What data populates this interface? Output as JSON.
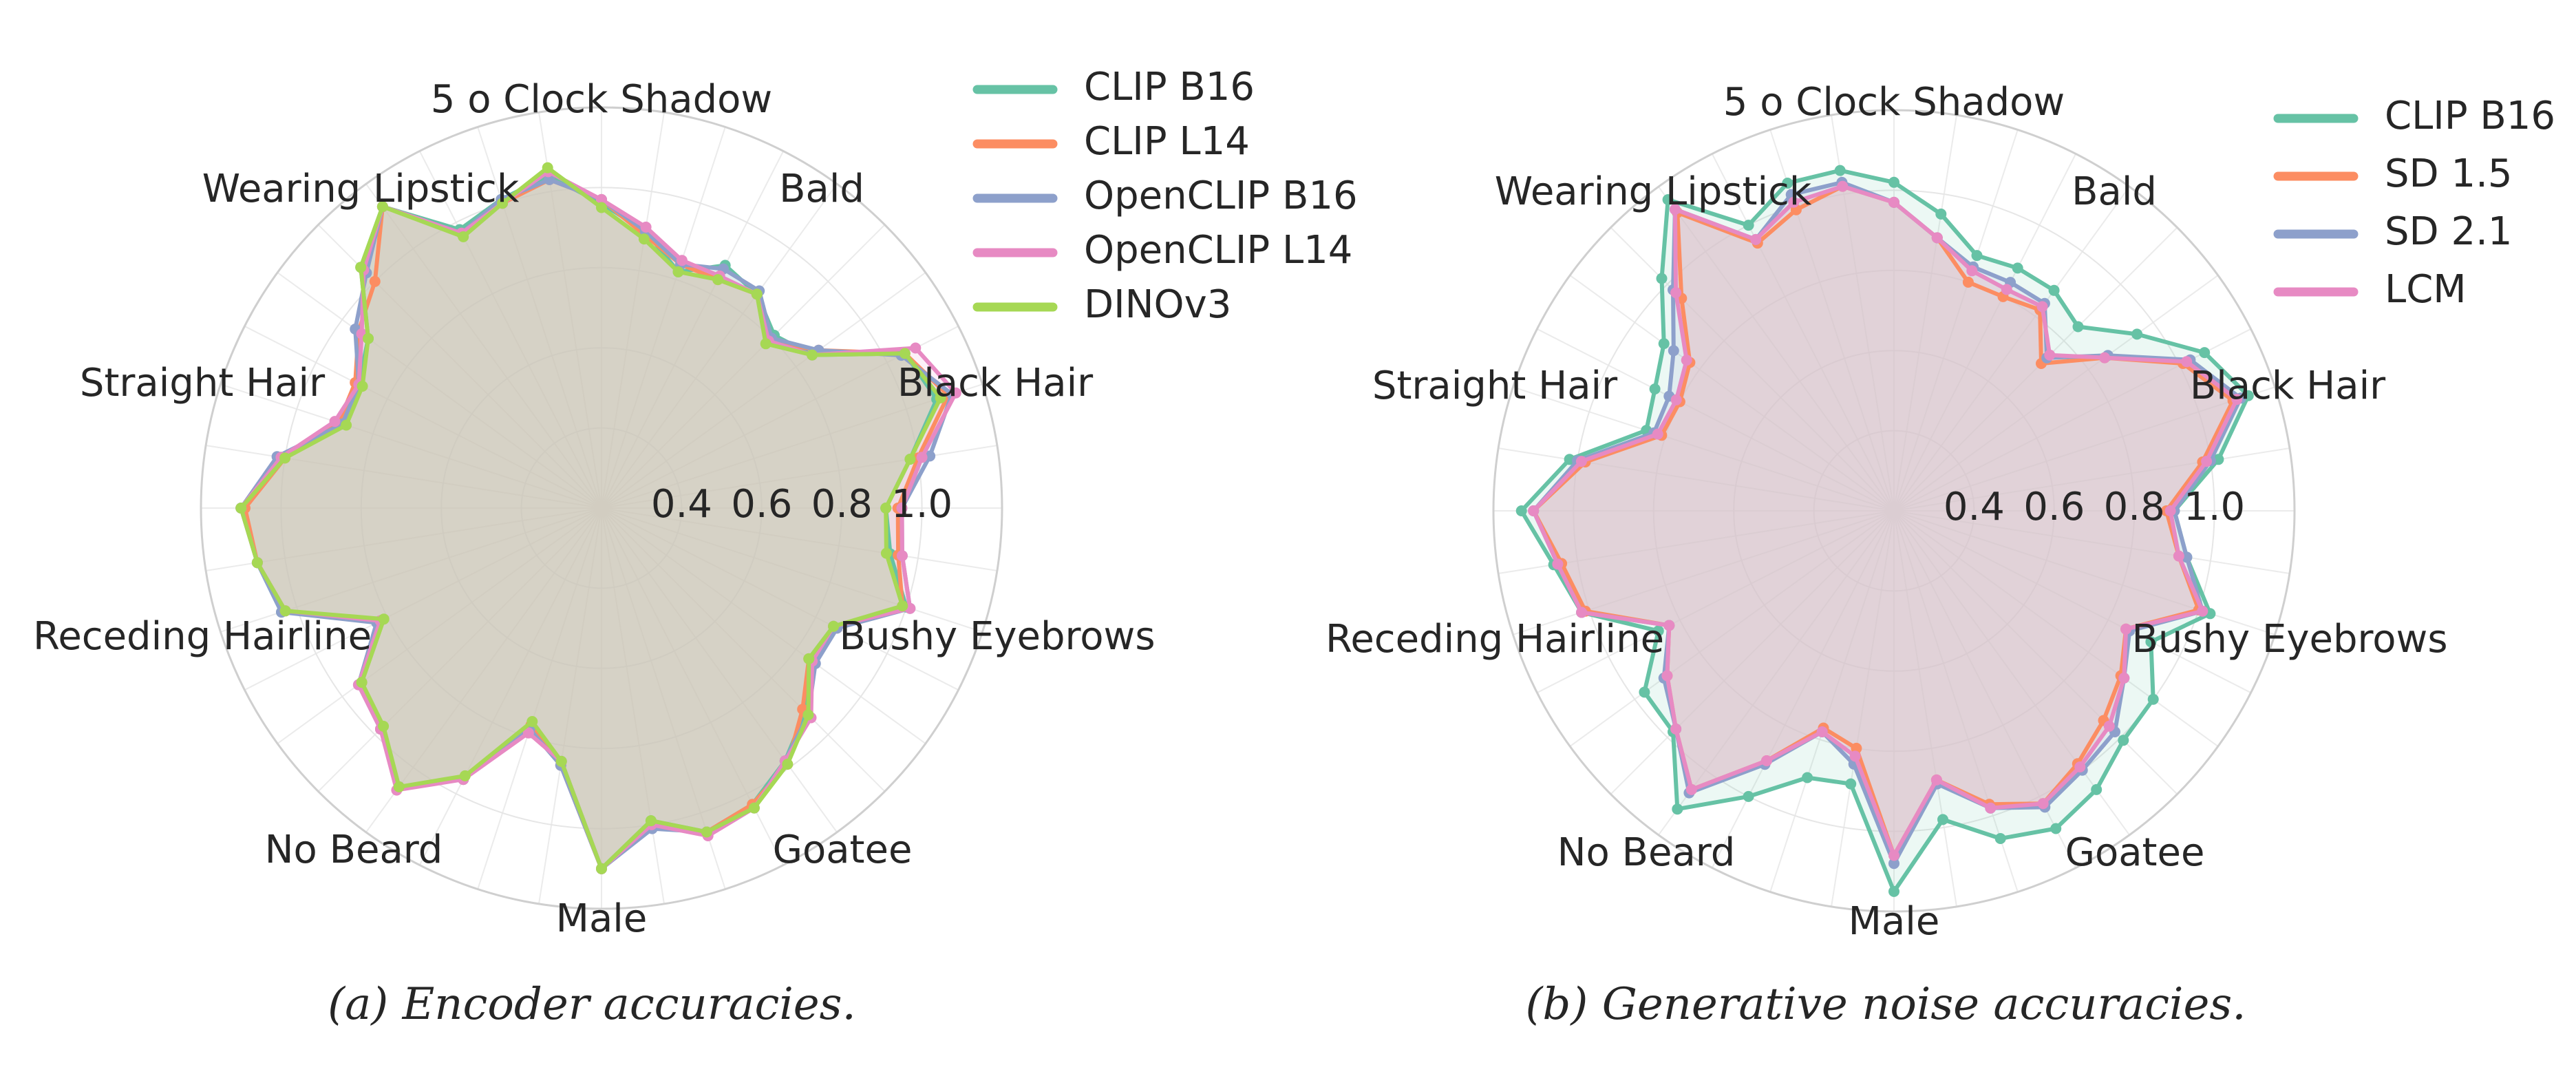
{
  "chart_data": [
    {
      "type": "radar",
      "caption": "(a) Encoder accuracies.",
      "axes": [
        "5 o Clock Shadow",
        "Bald",
        "Black Hair",
        "Bushy Eyebrows",
        "Goatee",
        "Male",
        "No Beard",
        "Receding Hairline",
        "Straight Hair",
        "Wearing Lipstick"
      ],
      "axis_labels": [
        {
          "text": "5 o Clock Shadow",
          "index": 0
        },
        {
          "text": "Bald",
          "index": 4
        },
        {
          "text": "Black Hair",
          "index": 8
        },
        {
          "text": "Bushy Eyebrows",
          "index": 12
        },
        {
          "text": "Goatee",
          "index": 16
        },
        {
          "text": "Male",
          "index": 20
        },
        {
          "text": "No Beard",
          "index": 24
        },
        {
          "text": "Receding Hairline",
          "index": 28
        },
        {
          "text": "Straight Hair",
          "index": 32
        },
        {
          "text": "Wearing Lipstick",
          "index": 36
        }
      ],
      "rlim": [
        0.2,
        1.2
      ],
      "r_ticks": [
        0.4,
        0.6,
        0.8,
        1.0
      ],
      "r_tick_labels": [
        "0.4",
        "0.6",
        "0.8",
        "1.0"
      ],
      "legend": [
        "CLIP B16",
        "CLIP L14",
        "OpenCLIP B16",
        "OpenCLIP L14",
        "DINOv3"
      ],
      "legend_position": "top-right",
      "fill_color": "#d4cfc3",
      "series": [
        {
          "name": "CLIP B16",
          "color": "#66c2a5",
          "values": [
            0.96,
            0.9,
            0.82,
            0.88,
            0.86,
            0.81,
            0.85,
            1.05,
            1.08,
            0.98,
            0.91,
            0.93,
            1.0,
            0.85,
            0.84,
            0.92,
            0.98,
            1.03,
            1.05,
            0.99,
            1.1,
            0.84,
            0.77,
            0.96,
            1.06,
            0.98,
            0.94,
            0.82,
            1.04,
            1.07,
            1.1,
            1.01,
            0.88,
            0.88,
            0.92,
            1.05,
            1.13,
            0.98,
            1.01,
            1.04
          ]
        },
        {
          "name": "CLIP L14",
          "color": "#fc8d62",
          "values": [
            0.97,
            0.89,
            0.84,
            0.84,
            0.86,
            0.79,
            0.87,
            1.05,
            1.11,
            1.0,
            0.94,
            0.95,
            0.99,
            0.86,
            0.84,
            0.91,
            0.99,
            1.03,
            1.05,
            1.0,
            1.1,
            0.85,
            0.77,
            0.96,
            1.06,
            0.98,
            0.94,
            0.82,
            1.03,
            1.07,
            1.09,
            1.0,
            0.89,
            0.89,
            0.95,
            1.0,
            1.13,
            0.97,
            1.0,
            1.03
          ]
        },
        {
          "name": "OpenCLIP B16",
          "color": "#8da0cb",
          "values": [
            0.97,
            0.9,
            0.84,
            0.87,
            0.87,
            0.8,
            0.87,
            1.04,
            1.12,
            1.03,
            0.95,
            0.96,
            1.01,
            0.86,
            0.86,
            0.93,
            0.98,
            1.04,
            1.05,
            1.01,
            1.1,
            0.85,
            0.78,
            0.96,
            1.06,
            0.98,
            0.95,
            0.83,
            1.04,
            1.07,
            1.1,
            1.02,
            0.88,
            0.88,
            0.96,
            1.03,
            1.13,
            0.97,
            1.01,
            1.03
          ]
        },
        {
          "name": "OpenCLIP L14",
          "color": "#e78ac3",
          "values": [
            0.97,
            0.91,
            0.85,
            0.85,
            0.86,
            0.79,
            0.85,
            1.08,
            1.13,
            1.01,
            0.95,
            0.96,
            1.01,
            0.85,
            0.85,
            0.94,
            0.98,
            1.04,
            1.06,
            1.0,
            1.1,
            0.84,
            0.79,
            0.96,
            1.07,
            0.98,
            0.95,
            0.82,
            1.03,
            1.07,
            1.1,
            1.01,
            0.9,
            0.88,
            0.94,
            1.04,
            1.13,
            0.97,
            1.0,
            1.05
          ]
        },
        {
          "name": "DINOv3",
          "color": "#a6d854",
          "values": [
            0.95,
            0.88,
            0.82,
            0.84,
            0.86,
            0.78,
            0.85,
            1.05,
            1.09,
            0.98,
            0.91,
            0.92,
            0.99,
            0.85,
            0.84,
            0.93,
            0.99,
            1.04,
            1.05,
            0.99,
            1.1,
            0.84,
            0.76,
            0.95,
            1.06,
            0.97,
            0.94,
            0.81,
            1.03,
            1.07,
            1.1,
            1.0,
            0.87,
            0.87,
            0.92,
            1.05,
            1.13,
            0.96,
            1.0,
            1.06
          ]
        }
      ]
    },
    {
      "type": "radar",
      "caption": "(b) Generative noise accuracies.",
      "axes": [
        "5 o Clock Shadow",
        "Bald",
        "Black Hair",
        "Bushy Eyebrows",
        "Goatee",
        "Male",
        "No Beard",
        "Receding Hairline",
        "Straight Hair",
        "Wearing Lipstick"
      ],
      "axis_labels": [
        {
          "text": "5 o Clock Shadow",
          "index": 0
        },
        {
          "text": "Bald",
          "index": 4
        },
        {
          "text": "Black Hair",
          "index": 8
        },
        {
          "text": "Bushy Eyebrows",
          "index": 12
        },
        {
          "text": "Goatee",
          "index": 16
        },
        {
          "text": "Male",
          "index": 20
        },
        {
          "text": "No Beard",
          "index": 24
        },
        {
          "text": "Receding Hairline",
          "index": 28
        },
        {
          "text": "Straight Hair",
          "index": 32
        },
        {
          "text": "Wearing Lipstick",
          "index": 36
        }
      ],
      "rlim": [
        0.2,
        1.2
      ],
      "r_ticks": [
        0.4,
        0.6,
        0.8,
        1.0
      ],
      "r_tick_labels": [
        "0.4",
        "0.6",
        "0.8",
        "1.0"
      ],
      "legend": [
        "CLIP B16",
        "SD 1.5",
        "SD 2.1",
        "LCM"
      ],
      "legend_position": "top-right",
      "fill_color": "#e0cfd6",
      "series": [
        {
          "name": "CLIP B16",
          "color": "#66c2a5",
          "values": [
            1.02,
            0.95,
            0.87,
            0.88,
            0.88,
            0.85,
            0.95,
            1.07,
            1.13,
            1.02,
            0.9,
            0.94,
            1.03,
            0.92,
            1.0,
            1.01,
            1.06,
            1.09,
            1.06,
            0.98,
            1.15,
            0.89,
            0.9,
            1.0,
            1.12,
            0.98,
            0.97,
            0.86,
            1.02,
            1.06,
            1.13,
            1.02,
            0.85,
            0.87,
            0.91,
            1.02,
            1.16,
            1.0,
            1.06,
            1.06
          ]
        },
        {
          "name": "SD 1.5",
          "color": "#fc8d62",
          "values": [
            0.97,
            0.89,
            0.8,
            0.8,
            0.82,
            0.72,
            0.85,
            1.01,
            1.09,
            0.98,
            0.88,
            0.92,
            1.0,
            0.85,
            0.9,
            0.94,
            0.98,
            1.02,
            0.97,
            0.88,
            1.06,
            0.8,
            0.77,
            0.9,
            1.06,
            0.97,
            0.9,
            0.83,
            1.01,
            1.04,
            1.1,
            0.98,
            0.81,
            0.8,
            0.83,
            0.95,
            1.12,
            0.95,
            0.99,
            1.02
          ]
        },
        {
          "name": "SD 2.1",
          "color": "#8da0cb",
          "values": [
            0.97,
            0.89,
            0.84,
            0.84,
            0.84,
            0.74,
            0.86,
            1.03,
            1.11,
            1.0,
            0.9,
            0.94,
            1.01,
            0.86,
            0.91,
            0.98,
            1.0,
            1.03,
            0.98,
            0.89,
            1.08,
            0.84,
            0.78,
            0.91,
            1.07,
            0.97,
            0.91,
            0.83,
            1.02,
            1.05,
            1.1,
            1.0,
            0.83,
            0.83,
            0.88,
            0.98,
            1.13,
            0.96,
            1.03,
            1.03
          ]
        },
        {
          "name": "LCM",
          "color": "#e78ac3",
          "values": [
            0.97,
            0.89,
            0.83,
            0.82,
            0.83,
            0.75,
            0.85,
            1.02,
            1.1,
            0.99,
            0.89,
            0.92,
            1.01,
            0.85,
            0.91,
            0.96,
            0.99,
            1.02,
            0.98,
            0.88,
            1.06,
            0.82,
            0.78,
            0.9,
            1.06,
            0.97,
            0.9,
            0.83,
            1.02,
            1.05,
            1.1,
            0.99,
            0.82,
            0.81,
            0.84,
            0.97,
            1.13,
            0.96,
            1.01,
            1.02
          ]
        }
      ]
    }
  ]
}
